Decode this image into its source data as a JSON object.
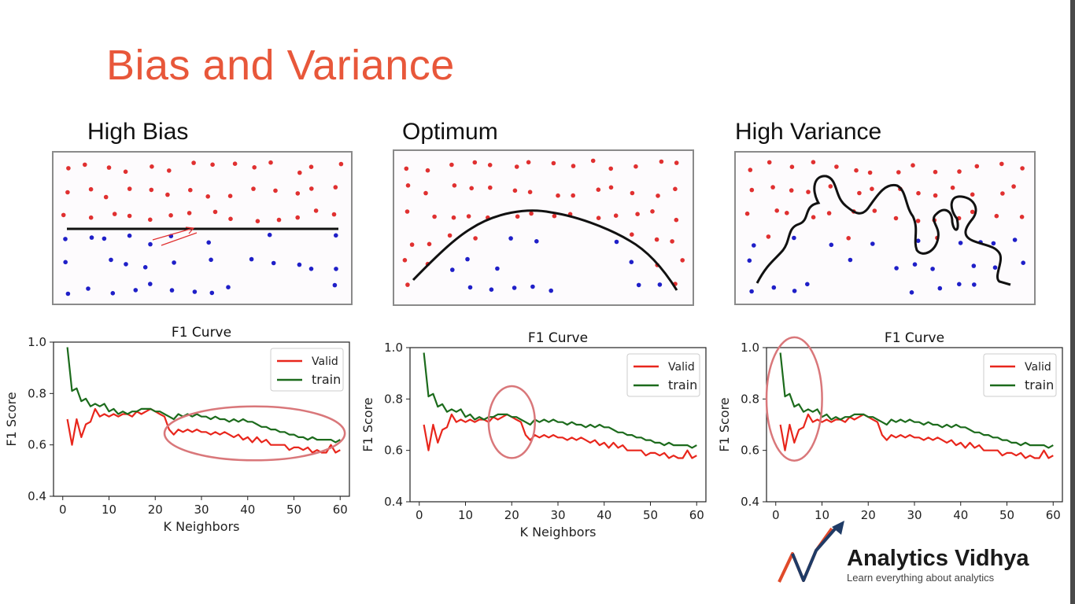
{
  "slide": {
    "title": "Bias and Variance"
  },
  "panels": [
    {
      "title": "High Bias"
    },
    {
      "title": "Optimum"
    },
    {
      "title": "High Variance"
    }
  ],
  "colors": {
    "title": "#e8573a",
    "red_point": "#e03030",
    "blue_point": "#1f1fc8",
    "valid": "#e8261c",
    "train": "#1c6b1c",
    "highlight": "#d9777a"
  },
  "logo": {
    "name": "Analytics Vidhya",
    "tagline": "Learn everything about analytics"
  },
  "chart_data": [
    {
      "type": "line",
      "title": "F1 Curve",
      "xlabel": "K Neighbors",
      "ylabel": "F1 Score",
      "xlim": [
        -2,
        62
      ],
      "ylim": [
        0.4,
        1.0
      ],
      "xticks": [
        0,
        10,
        20,
        30,
        40,
        50,
        60
      ],
      "yticks": [
        "0.4",
        "0.6",
        "0.8",
        "1.0"
      ],
      "legend": "top-right",
      "series": [
        {
          "name": "Valid",
          "color": "#e8261c",
          "x": [
            1,
            2,
            3,
            4,
            5,
            6,
            7,
            8,
            9,
            10,
            11,
            12,
            13,
            14,
            15,
            16,
            17,
            18,
            19,
            20,
            21,
            22,
            23,
            24,
            25,
            26,
            27,
            28,
            29,
            30,
            31,
            32,
            33,
            34,
            35,
            36,
            37,
            38,
            39,
            40,
            41,
            42,
            43,
            44,
            45,
            46,
            47,
            48,
            49,
            50,
            51,
            52,
            53,
            54,
            55,
            56,
            57,
            58,
            59,
            60
          ],
          "values": [
            0.7,
            0.6,
            0.7,
            0.63,
            0.68,
            0.69,
            0.74,
            0.71,
            0.72,
            0.71,
            0.72,
            0.71,
            0.72,
            0.72,
            0.71,
            0.73,
            0.72,
            0.73,
            0.74,
            0.73,
            0.72,
            0.71,
            0.66,
            0.64,
            0.66,
            0.65,
            0.66,
            0.65,
            0.66,
            0.65,
            0.65,
            0.64,
            0.65,
            0.64,
            0.65,
            0.64,
            0.63,
            0.64,
            0.62,
            0.63,
            0.61,
            0.63,
            0.61,
            0.62,
            0.6,
            0.6,
            0.6,
            0.6,
            0.58,
            0.59,
            0.59,
            0.58,
            0.59,
            0.57,
            0.58,
            0.57,
            0.57,
            0.6,
            0.57,
            0.58
          ]
        },
        {
          "name": "train",
          "color": "#1c6b1c",
          "x": [
            1,
            2,
            3,
            4,
            5,
            6,
            7,
            8,
            9,
            10,
            11,
            12,
            13,
            14,
            15,
            16,
            17,
            18,
            19,
            20,
            21,
            22,
            23,
            24,
            25,
            26,
            27,
            28,
            29,
            30,
            31,
            32,
            33,
            34,
            35,
            36,
            37,
            38,
            39,
            40,
            41,
            42,
            43,
            44,
            45,
            46,
            47,
            48,
            49,
            50,
            51,
            52,
            53,
            54,
            55,
            56,
            57,
            58,
            59,
            60
          ],
          "values": [
            0.98,
            0.81,
            0.82,
            0.77,
            0.78,
            0.75,
            0.76,
            0.75,
            0.76,
            0.73,
            0.74,
            0.72,
            0.73,
            0.72,
            0.73,
            0.73,
            0.74,
            0.74,
            0.74,
            0.73,
            0.73,
            0.72,
            0.71,
            0.7,
            0.72,
            0.71,
            0.72,
            0.71,
            0.72,
            0.71,
            0.71,
            0.7,
            0.71,
            0.7,
            0.7,
            0.69,
            0.7,
            0.69,
            0.7,
            0.69,
            0.69,
            0.68,
            0.67,
            0.67,
            0.66,
            0.66,
            0.65,
            0.65,
            0.64,
            0.64,
            0.63,
            0.63,
            0.62,
            0.63,
            0.62,
            0.62,
            0.62,
            0.62,
            0.61,
            0.62
          ]
        }
      ],
      "highlight": {
        "shape": "ellipse",
        "x_range": [
          22,
          61
        ],
        "y_range": [
          0.54,
          0.75
        ]
      }
    },
    {
      "type": "line",
      "title": "F1 Curve",
      "xlabel": "K Neighbors",
      "ylabel": "F1 Score",
      "xlim": [
        -2,
        62
      ],
      "ylim": [
        0.4,
        1.0
      ],
      "xticks": [
        0,
        10,
        20,
        30,
        40,
        50,
        60
      ],
      "yticks": [
        "0.4",
        "0.6",
        "0.8",
        "1.0"
      ],
      "legend": "top-right",
      "series": [
        {
          "name": "Valid",
          "color": "#e8261c",
          "x": [
            1,
            2,
            3,
            4,
            5,
            6,
            7,
            8,
            9,
            10,
            11,
            12,
            13,
            14,
            15,
            16,
            17,
            18,
            19,
            20,
            21,
            22,
            23,
            24,
            25,
            26,
            27,
            28,
            29,
            30,
            31,
            32,
            33,
            34,
            35,
            36,
            37,
            38,
            39,
            40,
            41,
            42,
            43,
            44,
            45,
            46,
            47,
            48,
            49,
            50,
            51,
            52,
            53,
            54,
            55,
            56,
            57,
            58,
            59,
            60
          ],
          "values": [
            0.7,
            0.6,
            0.7,
            0.63,
            0.68,
            0.69,
            0.74,
            0.71,
            0.72,
            0.71,
            0.72,
            0.71,
            0.72,
            0.72,
            0.71,
            0.73,
            0.72,
            0.73,
            0.74,
            0.73,
            0.72,
            0.71,
            0.66,
            0.64,
            0.66,
            0.65,
            0.66,
            0.65,
            0.66,
            0.65,
            0.65,
            0.64,
            0.65,
            0.64,
            0.65,
            0.64,
            0.63,
            0.64,
            0.62,
            0.63,
            0.61,
            0.63,
            0.61,
            0.62,
            0.6,
            0.6,
            0.6,
            0.6,
            0.58,
            0.59,
            0.59,
            0.58,
            0.59,
            0.57,
            0.58,
            0.57,
            0.57,
            0.6,
            0.57,
            0.58
          ]
        },
        {
          "name": "train",
          "color": "#1c6b1c",
          "x": [
            1,
            2,
            3,
            4,
            5,
            6,
            7,
            8,
            9,
            10,
            11,
            12,
            13,
            14,
            15,
            16,
            17,
            18,
            19,
            20,
            21,
            22,
            23,
            24,
            25,
            26,
            27,
            28,
            29,
            30,
            31,
            32,
            33,
            34,
            35,
            36,
            37,
            38,
            39,
            40,
            41,
            42,
            43,
            44,
            45,
            46,
            47,
            48,
            49,
            50,
            51,
            52,
            53,
            54,
            55,
            56,
            57,
            58,
            59,
            60
          ],
          "values": [
            0.98,
            0.81,
            0.82,
            0.77,
            0.78,
            0.75,
            0.76,
            0.75,
            0.76,
            0.73,
            0.74,
            0.72,
            0.73,
            0.72,
            0.73,
            0.73,
            0.74,
            0.74,
            0.74,
            0.73,
            0.73,
            0.72,
            0.71,
            0.7,
            0.72,
            0.71,
            0.72,
            0.71,
            0.72,
            0.71,
            0.71,
            0.7,
            0.71,
            0.7,
            0.7,
            0.69,
            0.7,
            0.69,
            0.7,
            0.69,
            0.69,
            0.68,
            0.67,
            0.67,
            0.66,
            0.66,
            0.65,
            0.65,
            0.64,
            0.64,
            0.63,
            0.63,
            0.62,
            0.63,
            0.62,
            0.62,
            0.62,
            0.62,
            0.61,
            0.62
          ]
        }
      ],
      "highlight": {
        "shape": "ellipse",
        "x_range": [
          15,
          25
        ],
        "y_range": [
          0.57,
          0.85
        ]
      }
    },
    {
      "type": "line",
      "title": "F1 Curve",
      "xlabel": "",
      "ylabel": "F1 Score",
      "xlim": [
        -2,
        62
      ],
      "ylim": [
        0.4,
        1.0
      ],
      "xticks": [
        0,
        10,
        20,
        30,
        40,
        50,
        60
      ],
      "yticks": [
        "0.4",
        "0.6",
        "0.8",
        "1.0"
      ],
      "legend": "top-right",
      "series": [
        {
          "name": "Valid",
          "color": "#e8261c",
          "x": [
            1,
            2,
            3,
            4,
            5,
            6,
            7,
            8,
            9,
            10,
            11,
            12,
            13,
            14,
            15,
            16,
            17,
            18,
            19,
            20,
            21,
            22,
            23,
            24,
            25,
            26,
            27,
            28,
            29,
            30,
            31,
            32,
            33,
            34,
            35,
            36,
            37,
            38,
            39,
            40,
            41,
            42,
            43,
            44,
            45,
            46,
            47,
            48,
            49,
            50,
            51,
            52,
            53,
            54,
            55,
            56,
            57,
            58,
            59,
            60
          ],
          "values": [
            0.7,
            0.6,
            0.7,
            0.63,
            0.68,
            0.69,
            0.74,
            0.71,
            0.72,
            0.71,
            0.72,
            0.71,
            0.72,
            0.72,
            0.71,
            0.73,
            0.72,
            0.73,
            0.74,
            0.73,
            0.72,
            0.71,
            0.66,
            0.64,
            0.66,
            0.65,
            0.66,
            0.65,
            0.66,
            0.65,
            0.65,
            0.64,
            0.65,
            0.64,
            0.65,
            0.64,
            0.63,
            0.64,
            0.62,
            0.63,
            0.61,
            0.63,
            0.61,
            0.62,
            0.6,
            0.6,
            0.6,
            0.6,
            0.58,
            0.59,
            0.59,
            0.58,
            0.59,
            0.57,
            0.58,
            0.57,
            0.57,
            0.6,
            0.57,
            0.58
          ]
        },
        {
          "name": "train",
          "color": "#1c6b1c",
          "x": [
            1,
            2,
            3,
            4,
            5,
            6,
            7,
            8,
            9,
            10,
            11,
            12,
            13,
            14,
            15,
            16,
            17,
            18,
            19,
            20,
            21,
            22,
            23,
            24,
            25,
            26,
            27,
            28,
            29,
            30,
            31,
            32,
            33,
            34,
            35,
            36,
            37,
            38,
            39,
            40,
            41,
            42,
            43,
            44,
            45,
            46,
            47,
            48,
            49,
            50,
            51,
            52,
            53,
            54,
            55,
            56,
            57,
            58,
            59,
            60
          ],
          "values": [
            0.98,
            0.81,
            0.82,
            0.77,
            0.78,
            0.75,
            0.76,
            0.75,
            0.76,
            0.73,
            0.74,
            0.72,
            0.73,
            0.72,
            0.73,
            0.73,
            0.74,
            0.74,
            0.74,
            0.73,
            0.73,
            0.72,
            0.71,
            0.7,
            0.72,
            0.71,
            0.72,
            0.71,
            0.72,
            0.71,
            0.71,
            0.7,
            0.71,
            0.7,
            0.7,
            0.69,
            0.7,
            0.69,
            0.7,
            0.69,
            0.69,
            0.68,
            0.67,
            0.67,
            0.66,
            0.66,
            0.65,
            0.65,
            0.64,
            0.64,
            0.63,
            0.63,
            0.62,
            0.63,
            0.62,
            0.62,
            0.62,
            0.62,
            0.61,
            0.62
          ]
        }
      ],
      "highlight": {
        "shape": "ellipse",
        "x_range": [
          -2,
          10
        ],
        "y_range": [
          0.56,
          1.04
        ]
      }
    }
  ]
}
